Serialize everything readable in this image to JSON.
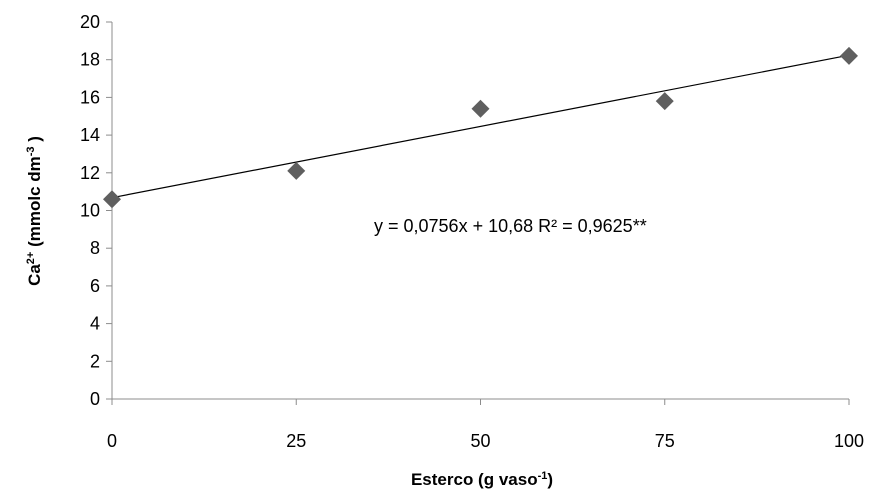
{
  "chart_data": {
    "type": "scatter",
    "title": "",
    "xlabel": {
      "main": "Esterco (g vaso",
      "sup": "-1",
      "end": ")"
    },
    "ylabel": {
      "main": "Ca",
      "sup1": "2+",
      "mid": " (mmolc dm",
      "sup2": "-3",
      "end": " )"
    },
    "xlim": [
      0,
      100
    ],
    "ylim": [
      0,
      20
    ],
    "x_ticks": [
      0,
      25,
      50,
      75,
      100
    ],
    "y_ticks": [
      0,
      2,
      4,
      6,
      8,
      10,
      12,
      14,
      16,
      18,
      20
    ],
    "grid": false,
    "legend": "none",
    "series": [
      {
        "marker": "diamond",
        "color": "#5f5f5f",
        "points": [
          {
            "x": 0,
            "y": 10.6
          },
          {
            "x": 25,
            "y": 12.1
          },
          {
            "x": 50,
            "y": 15.4
          },
          {
            "x": 75,
            "y": 15.8
          },
          {
            "x": 100,
            "y": 18.2
          }
        ]
      }
    ],
    "trendline": {
      "type": "linear",
      "slope": 0.0756,
      "intercept": 10.68,
      "color": "#000000"
    },
    "annotation": "y = 0,0756x + 10,68   R² = 0,9625**"
  }
}
